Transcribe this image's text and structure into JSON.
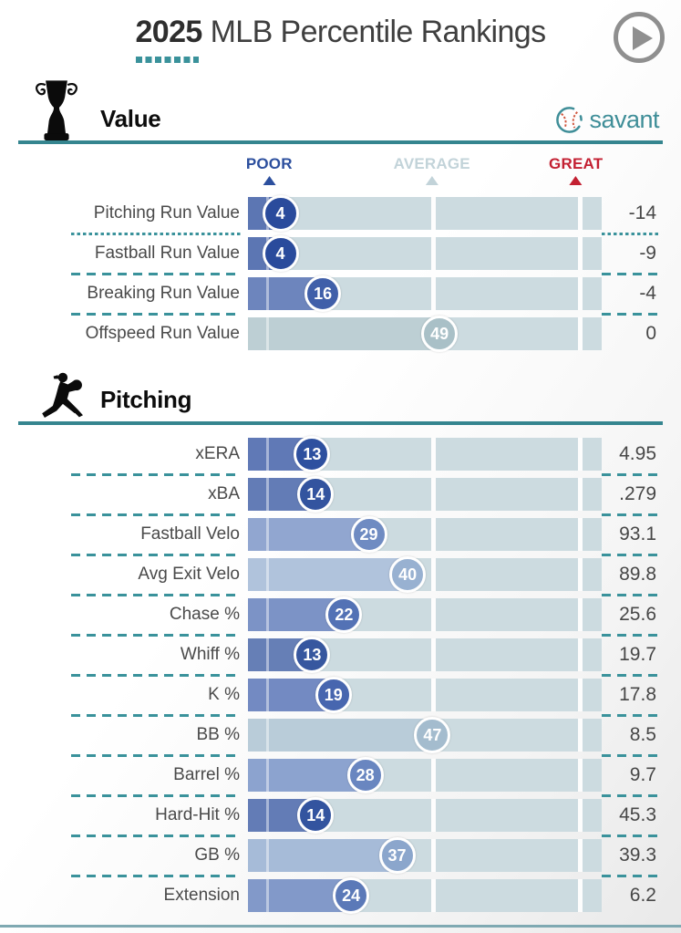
{
  "header": {
    "year": "2025",
    "title": "MLB Percentile Rankings"
  },
  "controls": {
    "play_button": "play"
  },
  "branding": {
    "logo_text": "savant",
    "logo_teal": "#3f8e98",
    "logo_red": "#d0553c"
  },
  "scale": {
    "poor_label": "POOR",
    "average_label": "AVERAGE",
    "great_label": "GREAT",
    "poor_color": "#2c4f9e",
    "average_color": "#c2d3d9",
    "great_color": "#c32032",
    "positions_pct": [
      6,
      52,
      92.7
    ]
  },
  "theme": {
    "teal_rule": "#35858f",
    "teal_dash": "#3a929b",
    "track": "#ccdbe0",
    "bottom_rule": "#7fa9b2"
  },
  "chart_data": {
    "type": "bar",
    "note": "percentile ranking sliders 0-100",
    "sections": [
      {
        "title": "Value",
        "rows": [
          {
            "label": "Pitching Run Value",
            "percentile": 4,
            "value": "-14",
            "color": "#2a4b9c",
            "divider": "dotted"
          },
          {
            "label": "Fastball Run Value",
            "percentile": 4,
            "value": "-9",
            "color": "#2a4b9c",
            "divider": "dashed"
          },
          {
            "label": "Breaking Run Value",
            "percentile": 16,
            "value": "-4",
            "color": "#405fa9",
            "divider": "dashed"
          },
          {
            "label": "Offspeed Run Value",
            "percentile": 49,
            "value": "0",
            "color": "#a9c0c7",
            "divider": "none"
          }
        ]
      },
      {
        "title": "Pitching",
        "rows": [
          {
            "label": "xERA",
            "percentile": 13,
            "value": "4.95",
            "color": "#2e509f",
            "divider": "dashed"
          },
          {
            "label": "xBA",
            "percentile": 14,
            "value": ".279",
            "color": "#33549f",
            "divider": "dashed"
          },
          {
            "label": "Fastball Velo",
            "percentile": 29,
            "value": "93.1",
            "color": "#6f8bc2",
            "divider": "dashed"
          },
          {
            "label": "Avg Exit Velo",
            "percentile": 40,
            "value": "89.8",
            "color": "#98b1d1",
            "divider": "dashed"
          },
          {
            "label": "Chase %",
            "percentile": 22,
            "value": "25.6",
            "color": "#5372b5",
            "divider": "dashed"
          },
          {
            "label": "Whiff %",
            "percentile": 13,
            "value": "19.7",
            "color": "#37579f",
            "divider": "dashed"
          },
          {
            "label": "K %",
            "percentile": 19,
            "value": "17.8",
            "color": "#4766af",
            "divider": "dashed"
          },
          {
            "label": "BB %",
            "percentile": 47,
            "value": "8.5",
            "color": "#a4bcce",
            "divider": "dashed"
          },
          {
            "label": "Barrel %",
            "percentile": 28,
            "value": "9.7",
            "color": "#6986c0",
            "divider": "dashed"
          },
          {
            "label": "Hard-Hit %",
            "percentile": 14,
            "value": "45.3",
            "color": "#33549f",
            "divider": "dashed"
          },
          {
            "label": "GB %",
            "percentile": 37,
            "value": "39.3",
            "color": "#8ba6cc",
            "divider": "dashed"
          },
          {
            "label": "Extension",
            "percentile": 24,
            "value": "6.2",
            "color": "#5b79b8",
            "divider": "none"
          }
        ]
      }
    ]
  }
}
